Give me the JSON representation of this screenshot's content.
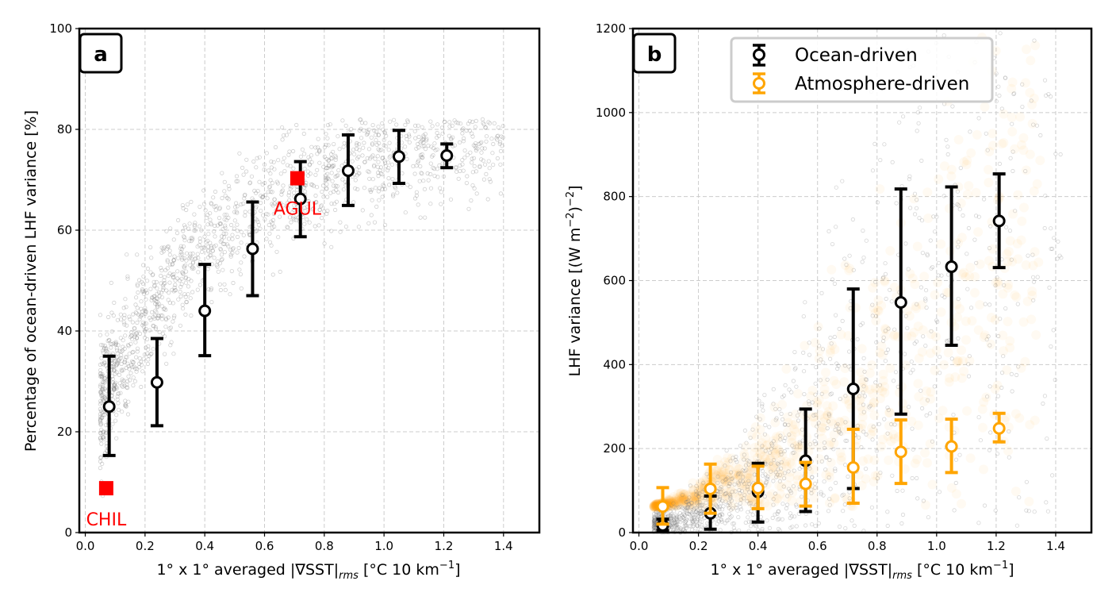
{
  "chart_data": [
    {
      "panel_label": "a",
      "type": "scatter",
      "xlabel_main": "1° x 1° averaged  |∇SST|",
      "xlabel_sub": "rms",
      "xlabel_units": " [°C 10 km",
      "xlabel_sup": "−1",
      "xlabel_close": "]",
      "ylabel": "Percentage of ocean-driven LHF variance [%]",
      "xlim": [
        -0.02,
        1.52
      ],
      "ylim": [
        0,
        100
      ],
      "xticks": [
        "0.0",
        "0.2",
        "0.4",
        "0.6",
        "0.8",
        "1.0",
        "1.2",
        "1.4"
      ],
      "xtick_values": [
        0,
        0.2,
        0.4,
        0.6,
        0.8,
        1.0,
        1.2,
        1.4
      ],
      "yticks": [
        "0",
        "20",
        "40",
        "60",
        "80",
        "100"
      ],
      "ytick_values": [
        0,
        20,
        40,
        60,
        80,
        100
      ],
      "grid": true,
      "series": [
        {
          "name": "Ocean-driven",
          "color": "#000000",
          "x": [
            0.08,
            0.24,
            0.4,
            0.56,
            0.72,
            0.88,
            1.05,
            1.21
          ],
          "y": [
            25.0,
            29.8,
            44.0,
            56.3,
            66.2,
            71.8,
            74.6,
            74.8
          ],
          "err_low": [
            15.3,
            21.2,
            35.1,
            47.0,
            58.7,
            64.9,
            69.3,
            72.4
          ],
          "err_high": [
            35.0,
            38.5,
            53.2,
            65.6,
            73.6,
            78.9,
            79.8,
            77.1
          ]
        }
      ],
      "sites": [
        {
          "name": "AGUL",
          "x": 0.71,
          "y": 70.3,
          "color": "#ff0000"
        },
        {
          "name": "CHIL",
          "x": 0.07,
          "y": 8.8,
          "color": "#ff0000"
        }
      ]
    },
    {
      "panel_label": "b",
      "type": "scatter",
      "xlabel_main": "1° x 1° averaged  |∇SST|",
      "xlabel_sub": "rms",
      "xlabel_units": " [°C 10 km",
      "xlabel_sup": "−1",
      "xlabel_close": "]",
      "ylabel_main": "LHF variance [(W m",
      "ylabel_sup1": "−2",
      "ylabel_mid": ")",
      "ylabel_sup2": "−2",
      "ylabel_close": "]",
      "xlim": [
        -0.02,
        1.52
      ],
      "ylim": [
        0,
        1200
      ],
      "xticks": [
        "0.0",
        "0.2",
        "0.4",
        "0.6",
        "0.8",
        "1.0",
        "1.2",
        "1.4"
      ],
      "xtick_values": [
        0,
        0.2,
        0.4,
        0.6,
        0.8,
        1.0,
        1.2,
        1.4
      ],
      "yticks": [
        "0",
        "200",
        "400",
        "600",
        "800",
        "1000",
        "1200"
      ],
      "ytick_values": [
        0,
        200,
        400,
        600,
        800,
        1000,
        1200
      ],
      "grid": true,
      "legend_position": "upper-center",
      "series": [
        {
          "name": "Ocean-driven",
          "color": "#000000",
          "x": [
            0.08,
            0.24,
            0.4,
            0.56,
            0.72,
            0.88,
            1.05,
            1.21
          ],
          "y": [
            17,
            46,
            97,
            171,
            342,
            548,
            633,
            742
          ],
          "err_low": [
            5,
            8,
            25,
            50,
            105,
            282,
            446,
            631
          ],
          "err_high": [
            32,
            87,
            165,
            294,
            580,
            818,
            823,
            854
          ]
        },
        {
          "name": "Atmosphere-driven",
          "color": "#ffa500",
          "x": [
            0.08,
            0.24,
            0.4,
            0.56,
            0.72,
            0.88,
            1.05,
            1.21
          ],
          "y": [
            62,
            104,
            106,
            116,
            155,
            192,
            205,
            248
          ],
          "err_low": [
            20,
            46,
            57,
            63,
            70,
            117,
            143,
            216
          ],
          "err_high": [
            107,
            163,
            158,
            167,
            246,
            268,
            270,
            284
          ]
        }
      ]
    }
  ]
}
